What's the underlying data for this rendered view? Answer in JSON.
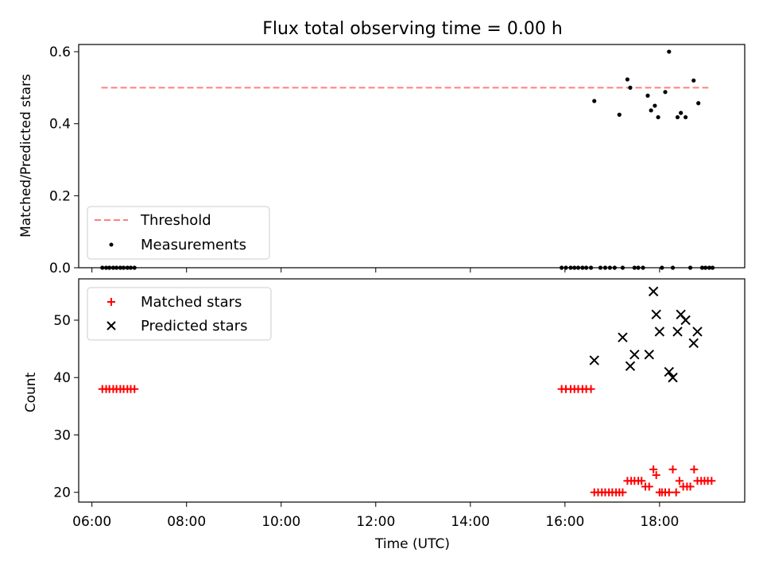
{
  "chart_data": [
    {
      "type": "scatter",
      "title": "Flux total observing time = 0.00 h",
      "ylabel": "Matched/Predicted stars",
      "xlabel": "",
      "ylim": [
        0,
        0.62
      ],
      "yticks": [
        "0.0",
        "0.2",
        "0.4",
        "0.6"
      ],
      "ytick_values": [
        0,
        0.2,
        0.4,
        0.6
      ],
      "x_unit": "hours UTC",
      "xlim": [
        5.72,
        19.8
      ],
      "legend": {
        "position": "lower-left",
        "entries": [
          "Threshold",
          "Measurements"
        ]
      },
      "threshold": {
        "name": "Threshold",
        "value": 0.5,
        "x_start": 6.2,
        "x_end": 19.03,
        "color": "#ff7f7f",
        "style": "dashed"
      },
      "measurements": {
        "name": "Measurements",
        "color": "#000000",
        "x": [
          6.22,
          6.3,
          6.37,
          6.45,
          6.52,
          6.6,
          6.67,
          6.75,
          6.82,
          6.9,
          15.93,
          16.02,
          16.12,
          16.2,
          16.28,
          16.37,
          16.45,
          16.55,
          16.62,
          16.75,
          16.85,
          16.95,
          17.05,
          17.15,
          17.22,
          17.32,
          17.38,
          17.47,
          17.55,
          17.65,
          17.75,
          17.82,
          17.9,
          17.97,
          18.05,
          18.12,
          18.2,
          18.28,
          18.38,
          18.45,
          18.55,
          18.65,
          18.72,
          18.82,
          18.9,
          18.97,
          19.05,
          19.12
        ],
        "y": [
          0,
          0,
          0,
          0,
          0,
          0,
          0,
          0,
          0,
          0,
          0,
          0,
          0,
          0,
          0,
          0,
          0,
          0,
          0.463,
          0,
          0,
          0,
          0,
          0.425,
          0,
          0.523,
          0.5,
          0,
          0,
          0,
          0.478,
          0.437,
          0.45,
          0.418,
          0,
          0.488,
          0.6,
          0,
          0.418,
          0.43,
          0.418,
          0,
          0.52,
          0.457,
          0,
          0,
          0,
          0
        ]
      }
    },
    {
      "type": "scatter",
      "title": "",
      "ylabel": "Count",
      "xlabel": "Time (UTC)",
      "ylim": [
        18.3,
        57.2
      ],
      "yticks": [
        "20",
        "30",
        "40",
        "50"
      ],
      "ytick_values": [
        20,
        30,
        40,
        50
      ],
      "x_unit": "hours UTC",
      "xlim": [
        5.72,
        19.8
      ],
      "xticks": [
        "06:00",
        "08:00",
        "10:00",
        "12:00",
        "14:00",
        "16:00",
        "18:00"
      ],
      "xtick_values": [
        6,
        8,
        10,
        12,
        14,
        16,
        18
      ],
      "legend": {
        "position": "upper-left",
        "entries": [
          "Matched stars",
          "Predicted stars"
        ]
      },
      "series": [
        {
          "name": "Matched stars",
          "marker": "plus",
          "color": "#ff0000",
          "x": [
            6.22,
            6.3,
            6.37,
            6.45,
            6.52,
            6.6,
            6.67,
            6.75,
            6.82,
            6.9,
            15.93,
            16.02,
            16.12,
            16.2,
            16.28,
            16.37,
            16.45,
            16.55,
            16.62,
            16.7,
            16.78,
            16.85,
            16.93,
            17.0,
            17.08,
            17.15,
            17.22,
            17.32,
            17.4,
            17.47,
            17.55,
            17.62,
            17.7,
            17.78,
            17.87,
            17.93,
            18.0,
            18.05,
            18.12,
            18.2,
            18.28,
            18.35,
            18.42,
            18.5,
            18.58,
            18.65,
            18.73,
            18.8,
            18.88,
            18.95,
            19.02,
            19.1
          ],
          "y": [
            38,
            38,
            38,
            38,
            38,
            38,
            38,
            38,
            38,
            38,
            38,
            38,
            38,
            38,
            38,
            38,
            38,
            38,
            20,
            20,
            20,
            20,
            20,
            20,
            20,
            20,
            20,
            22,
            22,
            22,
            22,
            22,
            21,
            21,
            24,
            23,
            20,
            20,
            20,
            20,
            24,
            20,
            22,
            21,
            21,
            21,
            24,
            22,
            22,
            22,
            22,
            22
          ]
        },
        {
          "name": "Predicted stars",
          "marker": "x",
          "color": "#000000",
          "x": [
            16.62,
            17.22,
            17.38,
            17.47,
            17.78,
            17.87,
            17.93,
            18.0,
            18.2,
            18.28,
            18.38,
            18.45,
            18.55,
            18.72,
            18.8
          ],
          "y": [
            43,
            47,
            42,
            44,
            44,
            55,
            51,
            48,
            41,
            40,
            48,
            51,
            50,
            46,
            48
          ]
        }
      ]
    }
  ]
}
